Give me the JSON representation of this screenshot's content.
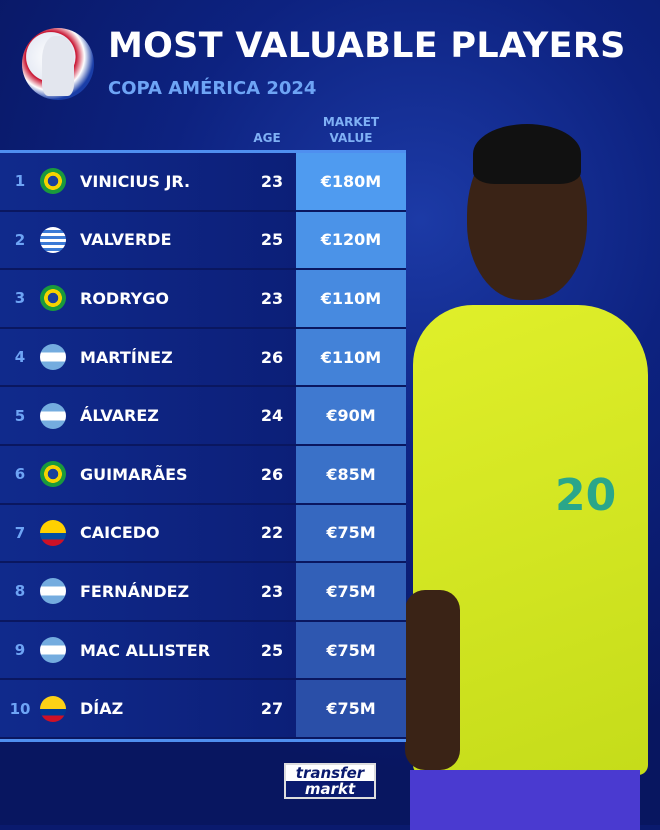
{
  "header": {
    "title": "MOST VALUABLE PLAYERS",
    "subtitle": "COPA AMÉRICA 2024",
    "logo_text": "Copa América"
  },
  "columns": {
    "age": "AGE",
    "value_line1": "MARKET",
    "value_line2": "VALUE"
  },
  "rows": [
    {
      "rank": "1",
      "flag": "brazil",
      "name": "VINICIUS JR.",
      "age": "23",
      "value": "€180M"
    },
    {
      "rank": "2",
      "flag": "uruguay",
      "name": "VALVERDE",
      "age": "25",
      "value": "€120M"
    },
    {
      "rank": "3",
      "flag": "brazil",
      "name": "RODRYGO",
      "age": "23",
      "value": "€110M"
    },
    {
      "rank": "4",
      "flag": "argentina",
      "name": "MARTÍNEZ",
      "age": "26",
      "value": "€110M"
    },
    {
      "rank": "5",
      "flag": "argentina",
      "name": "ÁLVAREZ",
      "age": "24",
      "value": "€90M"
    },
    {
      "rank": "6",
      "flag": "brazil",
      "name": "GUIMARÃES",
      "age": "26",
      "value": "€85M"
    },
    {
      "rank": "7",
      "flag": "ecuador",
      "name": "CAICEDO",
      "age": "22",
      "value": "€75M"
    },
    {
      "rank": "8",
      "flag": "argentina",
      "name": "FERNÁNDEZ",
      "age": "23",
      "value": "€75M"
    },
    {
      "rank": "9",
      "flag": "argentina",
      "name": "MAC ALLISTER",
      "age": "25",
      "value": "€75M"
    },
    {
      "rank": "10",
      "flag": "colombia",
      "name": "DÍAZ",
      "age": "27",
      "value": "€75M"
    }
  ],
  "brand": {
    "line1": "transfer",
    "line2": "markt"
  },
  "photo": {
    "shirt_number": "20"
  },
  "colors": {
    "background": "#0a1a6e",
    "accent": "#4f8ff0",
    "value_top": "#4f9bf0",
    "value_bottom": "#2a4fa8"
  }
}
